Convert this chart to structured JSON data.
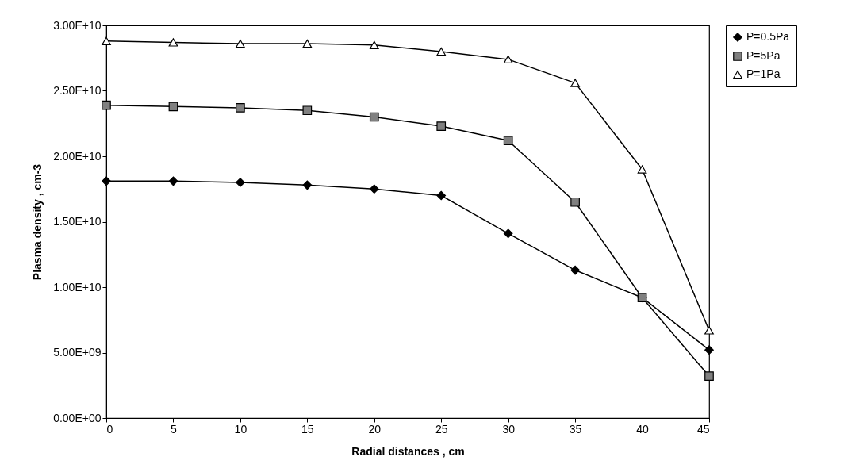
{
  "chart_data": {
    "type": "line",
    "xlabel": "Radial distances , cm",
    "ylabel": "Plasma density , cm-3",
    "x": [
      0,
      5,
      10,
      15,
      20,
      25,
      30,
      35,
      40,
      45
    ],
    "series": [
      {
        "name": "P=0.5Pa",
        "color": "#000000",
        "marker": "diamond",
        "values": [
          18100000000.0,
          18100000000.0,
          18000000000.0,
          17800000000.0,
          17500000000.0,
          17000000000.0,
          14100000000.0,
          11300000000.0,
          9200000000.0,
          5200000000.0
        ]
      },
      {
        "name": "P=5Pa",
        "color": "#808080",
        "marker": "square",
        "values": [
          23900000000.0,
          23800000000.0,
          23700000000.0,
          23500000000.0,
          23000000000.0,
          22300000000.0,
          21200000000.0,
          16500000000.0,
          9200000000.0,
          3200000000.0
        ]
      },
      {
        "name": "P=1Pa",
        "color": "#ffffff",
        "marker": "triangle",
        "values": [
          28800000000.0,
          28700000000.0,
          28600000000.0,
          28600000000.0,
          28500000000.0,
          28000000000.0,
          27400000000.0,
          25600000000.0,
          19000000000.0,
          6700000000.0
        ]
      }
    ],
    "xlim": [
      0,
      45
    ],
    "xticks": [
      0,
      5,
      10,
      15,
      20,
      25,
      30,
      35,
      40,
      45
    ],
    "ylim": [
      0,
      30000000000.0
    ],
    "yticks": [
      {
        "value": 0,
        "label": "0.00E+00"
      },
      {
        "value": 5000000000.0,
        "label": "5.00E+09"
      },
      {
        "value": 10000000000.0,
        "label": "1.00E+10"
      },
      {
        "value": 15000000000.0,
        "label": "1.50E+10"
      },
      {
        "value": 20000000000.0,
        "label": "2.00E+10"
      },
      {
        "value": 25000000000.0,
        "label": "2.50E+10"
      },
      {
        "value": 30000000000.0,
        "label": "3.00E+10"
      }
    ],
    "grid": false,
    "legend": "right",
    "line_style": "solid"
  }
}
